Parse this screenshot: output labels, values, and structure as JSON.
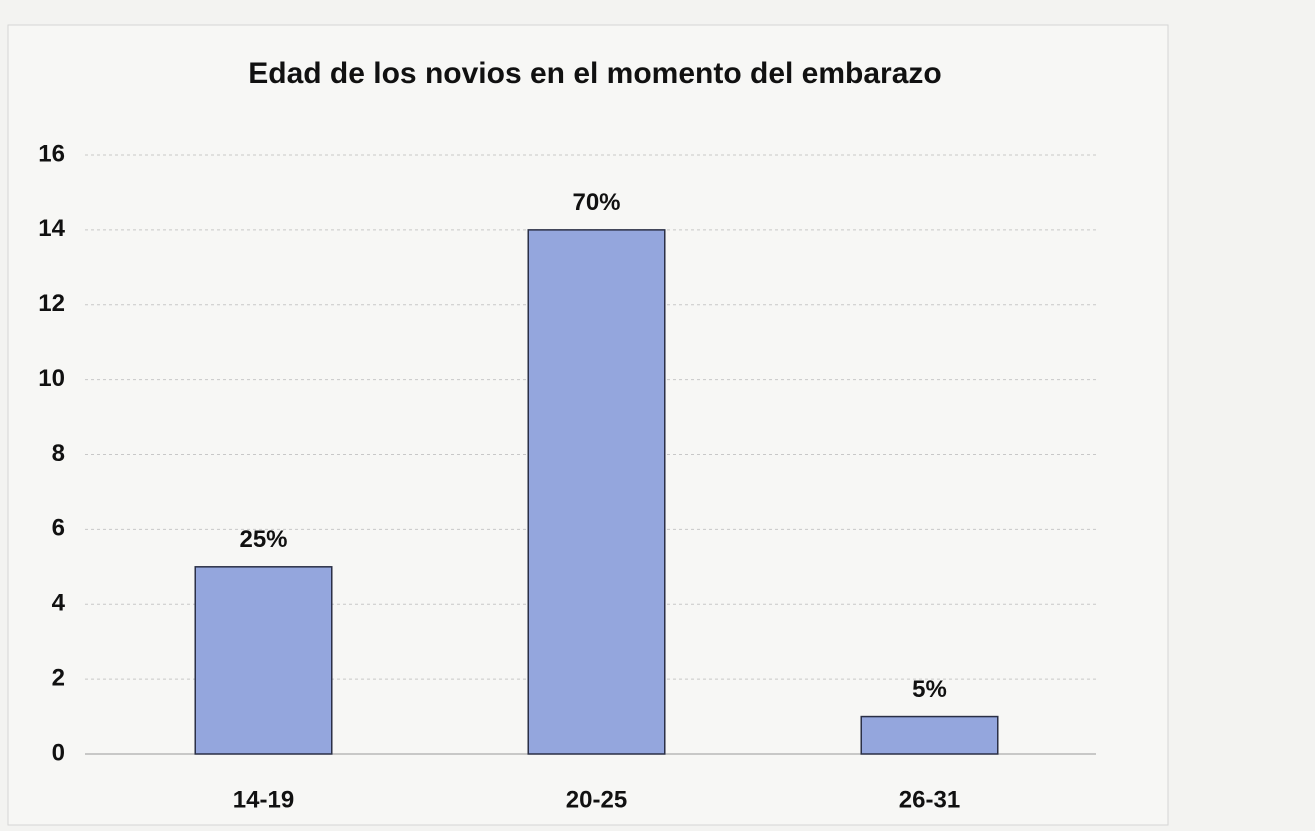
{
  "chart_data": {
    "type": "bar",
    "title": "Edad de los novios en el momento del  embarazo",
    "categories": [
      "14-19",
      "20-25",
      "26-31"
    ],
    "values": [
      5,
      14,
      1
    ],
    "value_labels": [
      "25%",
      "70%",
      "5%"
    ],
    "color": "#94a6dd",
    "ylim": [
      0,
      16
    ],
    "yticks": [
      0,
      2,
      4,
      6,
      8,
      10,
      12,
      14,
      16
    ],
    "grid": true
  }
}
